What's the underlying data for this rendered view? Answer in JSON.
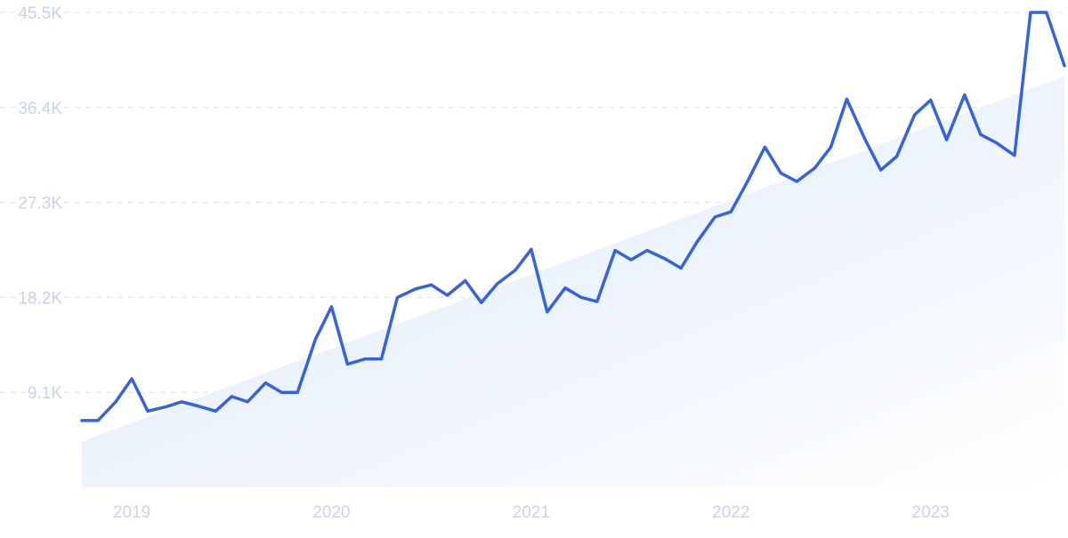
{
  "chart_data": {
    "type": "line",
    "title": "",
    "xlabel": "",
    "ylabel": "",
    "x_ticks": [
      {
        "label": "2019",
        "x": 2019.0
      },
      {
        "label": "2020",
        "x": 2020.0
      },
      {
        "label": "2021",
        "x": 2021.0
      },
      {
        "label": "2022",
        "x": 2022.0
      },
      {
        "label": "2023",
        "x": 2023.0
      }
    ],
    "y_ticks": [
      {
        "label": "9.1K",
        "value": 9100
      },
      {
        "label": "18.2K",
        "value": 18200
      },
      {
        "label": "27.3K",
        "value": 27300
      },
      {
        "label": "36.4K",
        "value": 36400
      },
      {
        "label": "45.5K",
        "value": 45500
      }
    ],
    "xlim": [
      2018.75,
      2023.67
    ],
    "ylim": [
      0,
      45500
    ],
    "grid": true,
    "legend": "none",
    "line_color": "#3563dc",
    "trend_fill_color": "#e3edfb",
    "series": [
      {
        "x": [
          2018.75,
          2018.83,
          2018.92,
          2019.0,
          2019.08,
          2019.17,
          2019.25,
          2019.33,
          2019.42,
          2019.5,
          2019.58,
          2019.67,
          2019.75,
          2019.83,
          2019.92,
          2020.0,
          2020.08,
          2020.17,
          2020.25,
          2020.33,
          2020.42,
          2020.5,
          2020.58,
          2020.67,
          2020.75,
          2020.83,
          2020.92,
          2021.0,
          2021.08,
          2021.17,
          2021.25,
          2021.33,
          2021.42,
          2021.5,
          2021.58,
          2021.67,
          2021.75,
          2021.83,
          2021.92,
          2022.0,
          2022.08,
          2022.17,
          2022.25,
          2022.33,
          2022.42,
          2022.5,
          2022.58,
          2022.67,
          2022.75,
          2022.83,
          2022.92,
          2023.0,
          2023.08,
          2023.17,
          2023.25,
          2023.33,
          2023.42,
          2023.5,
          2023.58,
          2023.67
        ],
        "values": [
          6400,
          6400,
          8200,
          10400,
          7300,
          7700,
          8200,
          7800,
          7300,
          8700,
          8200,
          10000,
          9100,
          9100,
          14200,
          17300,
          11800,
          12300,
          12300,
          18200,
          19000,
          19400,
          18400,
          19800,
          17700,
          19500,
          20800,
          22800,
          16800,
          19100,
          18200,
          17800,
          22700,
          21800,
          22700,
          21900,
          21000,
          23500,
          25900,
          26400,
          29200,
          32600,
          30100,
          29300,
          30600,
          32600,
          37200,
          33400,
          30400,
          31700,
          35700,
          37100,
          33300,
          37600,
          33800,
          33000,
          31800,
          45500,
          45500,
          40400
        ],
        "trend_start": 4400,
        "trend_end": 39400
      }
    ]
  }
}
